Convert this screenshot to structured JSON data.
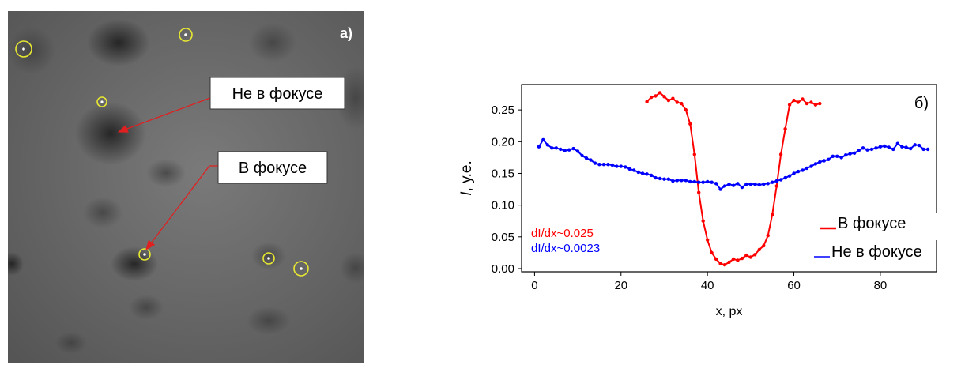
{
  "micrograph": {
    "panel_label": "a)",
    "callout_unfocused": "Не в фокусе",
    "callout_focused": "В фокусе",
    "colors": {
      "marker": "#e8e832",
      "arrow": "#e02020",
      "background": "#6c6c6c"
    }
  },
  "chart_data": {
    "type": "scatter",
    "panel_label": "б)",
    "xlabel": "x, px",
    "ylabel_italic": "I",
    "ylabel_rest": ", у.е.",
    "xlim": [
      -3,
      93
    ],
    "ylim": [
      -0.005,
      0.29
    ],
    "xticks": [
      0,
      20,
      40,
      60,
      80
    ],
    "yticks": [
      0.0,
      0.05,
      0.1,
      0.15,
      0.2,
      0.25
    ],
    "yticklabels": [
      "0.00",
      "0.05",
      "0.10",
      "0.15",
      "0.20",
      "0.25"
    ],
    "grid": false,
    "legend": "bottom-right",
    "annotations": [
      {
        "text": "dI/dx~0.025",
        "color": "#ff0000"
      },
      {
        "text": "dI/dx~0.0023",
        "color": "#0000ff"
      }
    ],
    "series": [
      {
        "name": "В фокусе",
        "color": "#ff0000",
        "points": [
          [
            26,
            0.263
          ],
          [
            27,
            0.27
          ],
          [
            28,
            0.272
          ],
          [
            29,
            0.277
          ],
          [
            30,
            0.271
          ],
          [
            31,
            0.265
          ],
          [
            32,
            0.268
          ],
          [
            33,
            0.262
          ],
          [
            34,
            0.26
          ],
          [
            35,
            0.25
          ],
          [
            36,
            0.228
          ],
          [
            37,
            0.18
          ],
          [
            38,
            0.12
          ],
          [
            39,
            0.075
          ],
          [
            40,
            0.045
          ],
          [
            41,
            0.025
          ],
          [
            42,
            0.015
          ],
          [
            43,
            0.008
          ],
          [
            44,
            0.006
          ],
          [
            45,
            0.01
          ],
          [
            46,
            0.015
          ],
          [
            47,
            0.013
          ],
          [
            48,
            0.016
          ],
          [
            49,
            0.021
          ],
          [
            50,
            0.018
          ],
          [
            51,
            0.022
          ],
          [
            52,
            0.03
          ],
          [
            53,
            0.036
          ],
          [
            54,
            0.052
          ],
          [
            55,
            0.085
          ],
          [
            56,
            0.13
          ],
          [
            57,
            0.18
          ],
          [
            58,
            0.22
          ],
          [
            59,
            0.258
          ],
          [
            60,
            0.265
          ],
          [
            61,
            0.262
          ],
          [
            62,
            0.267
          ],
          [
            63,
            0.26
          ],
          [
            64,
            0.262
          ],
          [
            65,
            0.258
          ],
          [
            66,
            0.26
          ]
        ]
      },
      {
        "name": "Не в фокусе",
        "color": "#0000ff",
        "points": [
          [
            1,
            0.192
          ],
          [
            2,
            0.203
          ],
          [
            3,
            0.195
          ],
          [
            4,
            0.19
          ],
          [
            5,
            0.19
          ],
          [
            6,
            0.188
          ],
          [
            7,
            0.186
          ],
          [
            8,
            0.187
          ],
          [
            9,
            0.189
          ],
          [
            10,
            0.185
          ],
          [
            11,
            0.178
          ],
          [
            12,
            0.174
          ],
          [
            13,
            0.171
          ],
          [
            14,
            0.166
          ],
          [
            15,
            0.164
          ],
          [
            16,
            0.164
          ],
          [
            17,
            0.164
          ],
          [
            18,
            0.163
          ],
          [
            19,
            0.161
          ],
          [
            20,
            0.161
          ],
          [
            21,
            0.16
          ],
          [
            22,
            0.157
          ],
          [
            23,
            0.155
          ],
          [
            24,
            0.152
          ],
          [
            25,
            0.15
          ],
          [
            26,
            0.149
          ],
          [
            27,
            0.147
          ],
          [
            28,
            0.143
          ],
          [
            29,
            0.142
          ],
          [
            30,
            0.141
          ],
          [
            31,
            0.141
          ],
          [
            32,
            0.138
          ],
          [
            33,
            0.139
          ],
          [
            34,
            0.139
          ],
          [
            35,
            0.139
          ],
          [
            36,
            0.137
          ],
          [
            37,
            0.137
          ],
          [
            38,
            0.136
          ],
          [
            39,
            0.136
          ],
          [
            40,
            0.137
          ],
          [
            41,
            0.136
          ],
          [
            42,
            0.134
          ],
          [
            43,
            0.125
          ],
          [
            44,
            0.13
          ],
          [
            45,
            0.133
          ],
          [
            46,
            0.131
          ],
          [
            47,
            0.134
          ],
          [
            48,
            0.128
          ],
          [
            49,
            0.133
          ],
          [
            50,
            0.133
          ],
          [
            51,
            0.133
          ],
          [
            52,
            0.132
          ],
          [
            53,
            0.133
          ],
          [
            54,
            0.134
          ],
          [
            55,
            0.136
          ],
          [
            56,
            0.138
          ],
          [
            57,
            0.14
          ],
          [
            58,
            0.143
          ],
          [
            59,
            0.146
          ],
          [
            60,
            0.15
          ],
          [
            61,
            0.153
          ],
          [
            62,
            0.155
          ],
          [
            63,
            0.158
          ],
          [
            64,
            0.161
          ],
          [
            65,
            0.165
          ],
          [
            66,
            0.168
          ],
          [
            67,
            0.17
          ],
          [
            68,
            0.172
          ],
          [
            69,
            0.177
          ],
          [
            70,
            0.177
          ],
          [
            71,
            0.175
          ],
          [
            72,
            0.179
          ],
          [
            73,
            0.181
          ],
          [
            74,
            0.182
          ],
          [
            75,
            0.186
          ],
          [
            76,
            0.19
          ],
          [
            77,
            0.187
          ],
          [
            78,
            0.188
          ],
          [
            79,
            0.19
          ],
          [
            80,
            0.192
          ],
          [
            81,
            0.193
          ],
          [
            82,
            0.191
          ],
          [
            83,
            0.188
          ],
          [
            84,
            0.197
          ],
          [
            85,
            0.192
          ],
          [
            86,
            0.191
          ],
          [
            87,
            0.189
          ],
          [
            88,
            0.195
          ],
          [
            89,
            0.194
          ],
          [
            90,
            0.188
          ],
          [
            91,
            0.188
          ]
        ]
      }
    ]
  }
}
